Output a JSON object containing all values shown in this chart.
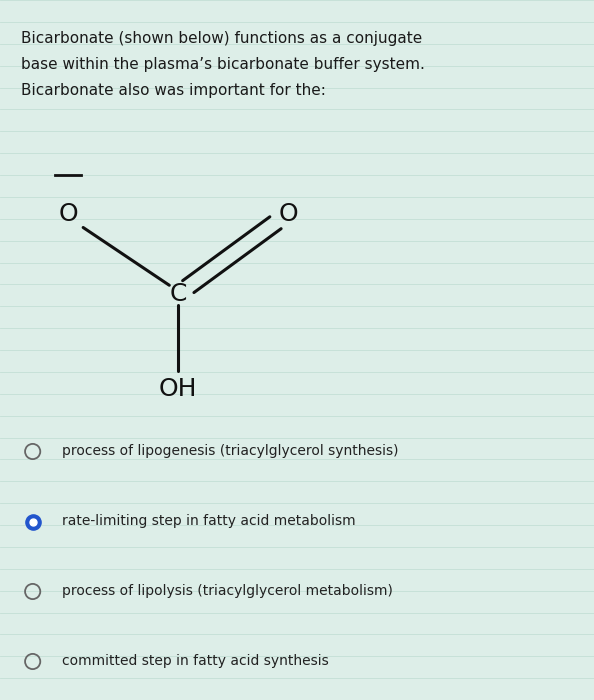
{
  "title_text": "Bicarbonate (shown below) functions as a conjugate\nbase within the plasma’s bicarbonate buffer system.\nBicarbonate also was important for the:",
  "bg_color": "#ddeee8",
  "text_color": "#1a1a1a",
  "molecule_color": "#111111",
  "options": [
    {
      "text": "process of lipogenesis (triacylglycerol synthesis)",
      "selected": false
    },
    {
      "text": "rate-limiting step in fatty acid metabolism",
      "selected": true
    },
    {
      "text": "process of lipolysis (triacylglycerol metabolism)",
      "selected": false
    },
    {
      "text": "committed step in fatty acid synthesis",
      "selected": false
    }
  ],
  "radio_color_unselected": "#666666",
  "radio_color_selected": "#2255cc",
  "option_text_color": "#222222",
  "figsize": [
    5.94,
    7.0
  ],
  "dpi": 100
}
